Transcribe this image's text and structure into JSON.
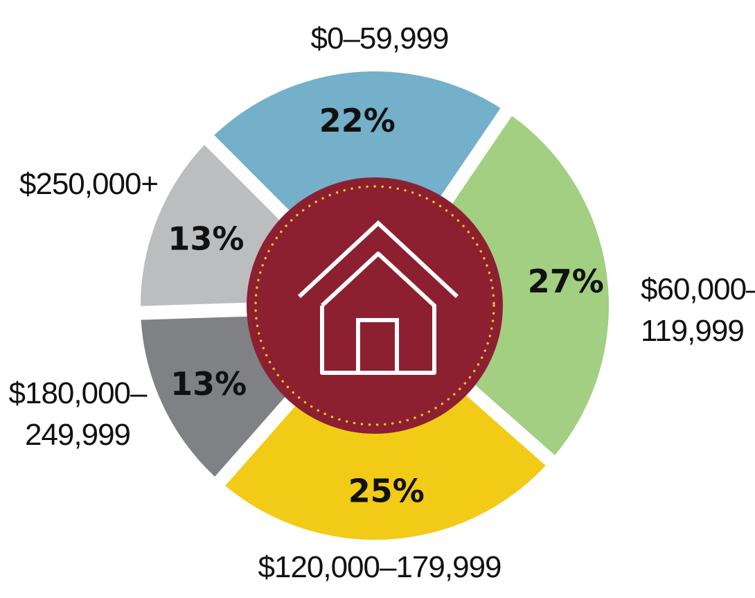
{
  "chart_data": {
    "type": "pie",
    "categories": [
      "$0–59,999",
      "$60,000–119,999",
      "$120,000–179,999",
      "$180,000–249,999",
      "$250,000+"
    ],
    "label_lines": [
      [
        "$0–59,999"
      ],
      [
        "$60,000–",
        "119,999"
      ],
      [
        "$120,000–179,999"
      ],
      [
        "$180,000–",
        "249,999"
      ],
      [
        "$250,000+"
      ]
    ],
    "values": [
      22,
      27,
      25,
      13,
      13
    ],
    "value_labels": [
      "22%",
      "27%",
      "25%",
      "13%",
      "13%"
    ],
    "colors": [
      "#74b0c9",
      "#a2cf81",
      "#f2cb17",
      "#808184",
      "#bcbdbf"
    ],
    "center_color": "#8c2031",
    "center_dots_color": "#f2cb17",
    "center_icon": "house-icon",
    "title": "",
    "legend": "none"
  }
}
